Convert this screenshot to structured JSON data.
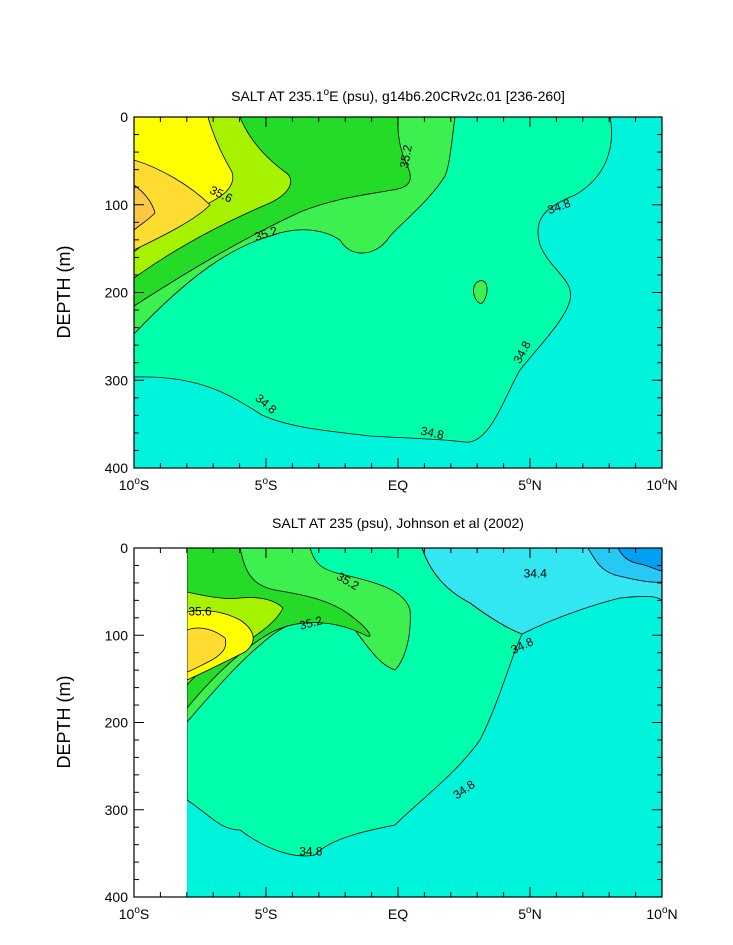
{
  "chart_data": [
    {
      "type": "heatmap",
      "title": "SALT AT 235.1°E (psu), g14b6.20CRv2c.01 [236-260]",
      "title_parts": [
        "SALT AT 235.1",
        "o",
        "E (psu), g14b6.20CRv2c.01 [236-260]"
      ],
      "ylabel": "DEPTH (m)",
      "y_ticks": [
        "0",
        "100",
        "200",
        "300",
        "400"
      ],
      "y_tick_values": [
        0,
        100,
        200,
        300,
        400
      ],
      "x_ticks": [
        {
          "value": -10,
          "num": "10",
          "hemi": "S"
        },
        {
          "value": -5,
          "num": "5",
          "hemi": "S"
        },
        {
          "value": 0,
          "label": "EQ"
        },
        {
          "value": 5,
          "num": "5",
          "hemi": "N"
        },
        {
          "value": 10,
          "num": "10",
          "hemi": "N"
        }
      ],
      "xlim": [
        -10,
        10
      ],
      "ylim": [
        400,
        0
      ],
      "contour_labels": [
        {
          "text": "35.6",
          "x": -6.7,
          "y": 88,
          "rot": 25
        },
        {
          "text": "35.2",
          "x": -5.0,
          "y": 133,
          "rot": -18
        },
        {
          "text": "35.2",
          "x": 0.3,
          "y": 45,
          "rot": -80
        },
        {
          "text": "34.8",
          "x": 6.1,
          "y": 102,
          "rot": -20
        },
        {
          "text": "34.8",
          "x": 4.7,
          "y": 268,
          "rot": -62
        },
        {
          "text": "34.8",
          "x": -5.0,
          "y": 327,
          "rot": 40
        },
        {
          "text": "34.8",
          "x": 1.3,
          "y": 360,
          "rot": 12
        }
      ]
    },
    {
      "type": "heatmap",
      "title": "SALT AT 235 (psu), Johnson et al (2002)",
      "ylabel": "DEPTH (m)",
      "y_ticks": [
        "0",
        "100",
        "200",
        "300",
        "400"
      ],
      "y_tick_values": [
        0,
        100,
        200,
        300,
        400
      ],
      "x_ticks": [
        {
          "value": -10,
          "num": "10",
          "hemi": "S"
        },
        {
          "value": -5,
          "num": "5",
          "hemi": "S"
        },
        {
          "value": 0,
          "label": "EQ"
        },
        {
          "value": 5,
          "num": "5",
          "hemi": "N"
        },
        {
          "value": 10,
          "num": "10",
          "hemi": "N"
        }
      ],
      "xlim": [
        -10,
        10
      ],
      "ylim": [
        400,
        0
      ],
      "contour_labels": [
        {
          "text": "35.6",
          "x": -7.5,
          "y": 73,
          "rot": 0
        },
        {
          "text": "35.2",
          "x": -1.9,
          "y": 38,
          "rot": 30
        },
        {
          "text": "35.2",
          "x": -3.3,
          "y": 86,
          "rot": -15
        },
        {
          "text": "34.4",
          "x": 5.2,
          "y": 29,
          "rot": 0
        },
        {
          "text": "34.8",
          "x": 4.7,
          "y": 112,
          "rot": -25
        },
        {
          "text": "34.8",
          "x": 2.5,
          "y": 277,
          "rot": -35
        },
        {
          "text": "34.8",
          "x": -3.3,
          "y": 348,
          "rot": 0
        }
      ]
    }
  ],
  "colors": {
    "s34_0": "#00a0f2",
    "s34_2": "#28c8f6",
    "s34_4": "#32e6f2",
    "s34_8": "#00f4dc",
    "s35_0": "#00ffaa",
    "s35_2": "#3cf050",
    "s35_4": "#24dc28",
    "s35_6": "#a6f200",
    "s35_8": "#ffff00",
    "s36_0": "#ffdd30",
    "s36_2": "#fcc846"
  }
}
